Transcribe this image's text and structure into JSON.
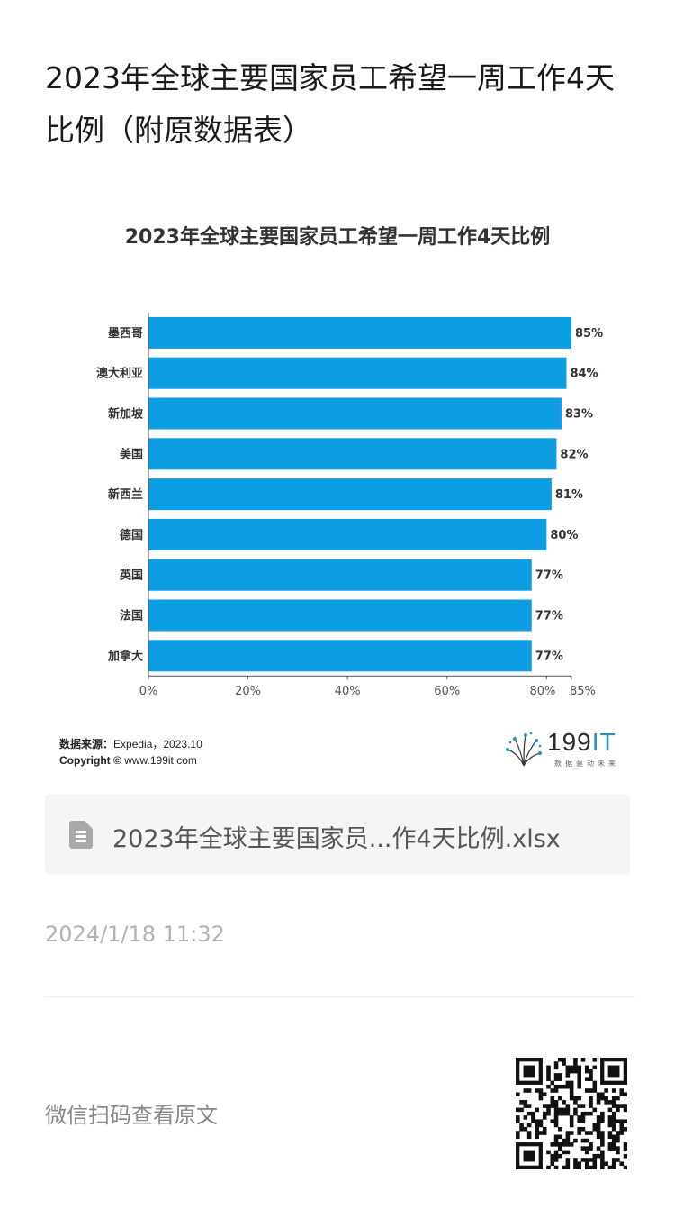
{
  "article": {
    "title": "2023年全球主要国家员工希望一周工作4天比例（附原数据表）"
  },
  "chart_data": {
    "type": "bar",
    "orientation": "horizontal",
    "title": "2023年全球主要国家员工希望一周工作4天比例",
    "categories": [
      "墨西哥",
      "澳大利亚",
      "新加坡",
      "美国",
      "新西兰",
      "德国",
      "英国",
      "法国",
      "加拿大"
    ],
    "values": [
      85,
      84,
      83,
      82,
      81,
      80,
      77,
      77,
      77
    ],
    "value_labels": [
      "85%",
      "84%",
      "83%",
      "82%",
      "81%",
      "80%",
      "77%",
      "77%",
      "77%"
    ],
    "x_ticks": [
      0,
      20,
      40,
      60,
      80,
      85
    ],
    "x_tick_labels": [
      "0%",
      "20%",
      "40%",
      "60%",
      "80%",
      "85%"
    ],
    "xlim": [
      0,
      85
    ],
    "bar_color": "#0c9de3",
    "grid": false,
    "legend": "none"
  },
  "source": {
    "label": "数据来源：",
    "text": "Expedia，2023.10",
    "copyright_label": "Copyright ©",
    "copyright_text": "www.199it.com"
  },
  "brand": {
    "name_prefix": "199",
    "name_suffix": "IT",
    "tagline": "数据驱动未来",
    "accent_color": "#2a8fc8"
  },
  "attachment": {
    "file_name": "2023年全球主要国家员...作4天比例.xlsx",
    "icon": "spreadsheet-file-icon"
  },
  "meta": {
    "publish_time": "2024/1/18 11:32"
  },
  "footer": {
    "qr_hint": "微信扫码查看原文",
    "qr_icon": "qr-code-icon"
  }
}
